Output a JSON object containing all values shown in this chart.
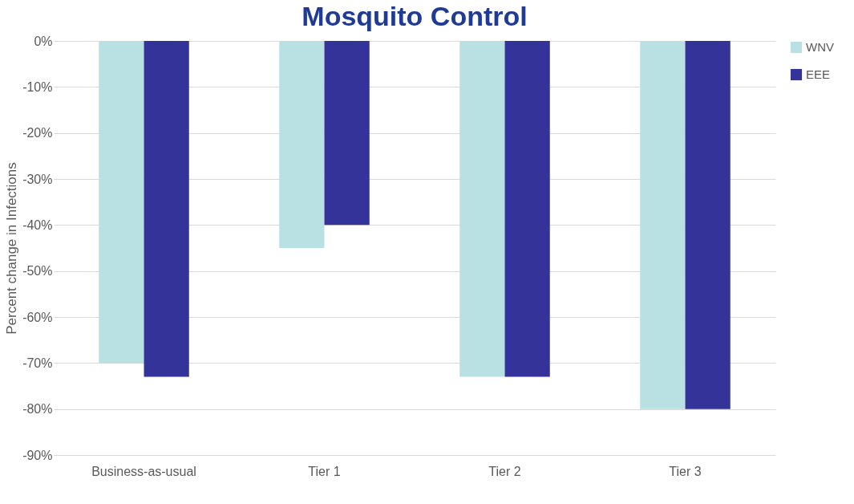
{
  "chart_data": {
    "type": "bar",
    "title": "Mosquito Control",
    "ylabel": "Percent change in Infections",
    "categories": [
      "Business-as-usual",
      "Tier 1",
      "Tier 2",
      "Tier 3"
    ],
    "series": [
      {
        "name": "WNV",
        "color": "#b9e0e3",
        "values": [
          -70,
          -45,
          -73,
          -80
        ]
      },
      {
        "name": "EEE",
        "color": "#333399",
        "values": [
          -73,
          -40,
          -73,
          -80
        ]
      }
    ],
    "ylim": [
      -90,
      0
    ],
    "yticks": [
      {
        "value": 0,
        "label": "0%"
      },
      {
        "value": -10,
        "label": "-10%"
      },
      {
        "value": -20,
        "label": "-20%"
      },
      {
        "value": -30,
        "label": "-30%"
      },
      {
        "value": -40,
        "label": "-40%"
      },
      {
        "value": -50,
        "label": "-50%"
      },
      {
        "value": -60,
        "label": "-60%"
      },
      {
        "value": -70,
        "label": "-70%"
      },
      {
        "value": -80,
        "label": "-80%"
      },
      {
        "value": -90,
        "label": "-90%"
      }
    ],
    "grid": "y",
    "legend": "right"
  }
}
